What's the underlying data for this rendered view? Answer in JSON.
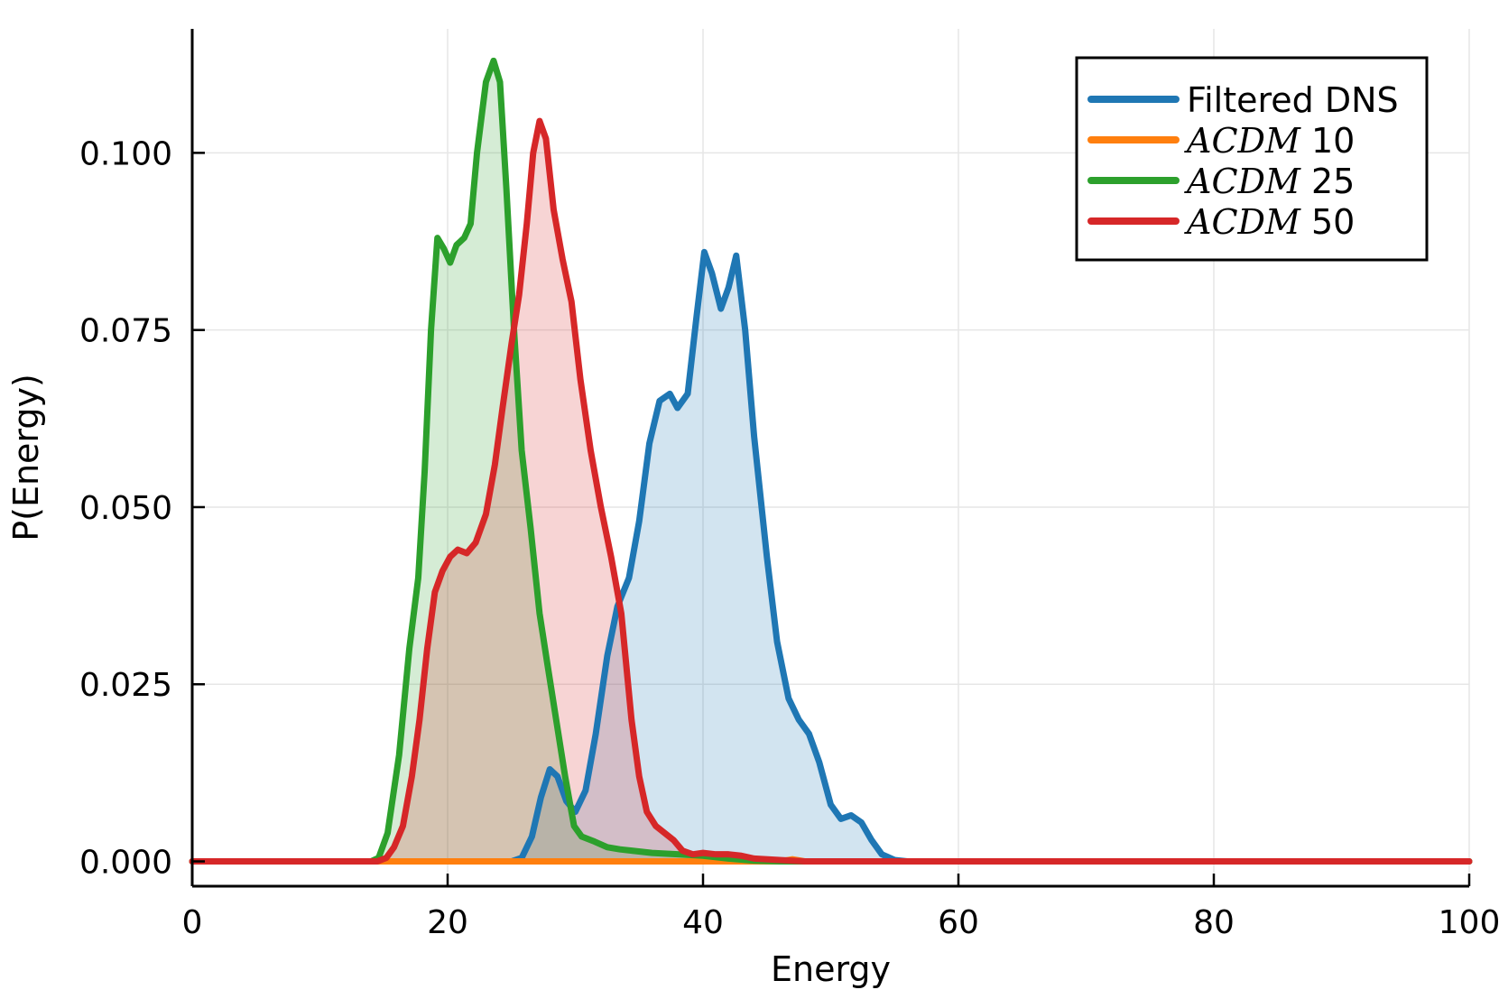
{
  "chart_data": {
    "type": "area",
    "title": "",
    "xlabel": "Energy",
    "ylabel": "P(Energy)",
    "xlim": [
      0,
      100
    ],
    "ylim": [
      -0.0035,
      0.1175
    ],
    "x_ticks": [
      0,
      20,
      40,
      60,
      80,
      100
    ],
    "x_tick_labels": [
      "0",
      "20",
      "40",
      "60",
      "80",
      "100"
    ],
    "y_ticks": [
      0,
      0.025,
      0.05,
      0.075,
      0.1
    ],
    "y_tick_labels": [
      "0.000",
      "0.025",
      "0.050",
      "0.075",
      "0.100"
    ],
    "grid": true,
    "legend_position": "top-right",
    "series": [
      {
        "name": "Filtered DNS",
        "legend_math": "",
        "legend_suffix": "Filtered DNS",
        "color": "#1f77b4",
        "fill": true,
        "points": [
          [
            0,
            0
          ],
          [
            25,
            0
          ],
          [
            25.8,
            0.0005
          ],
          [
            26.6,
            0.0035
          ],
          [
            27.3,
            0.009
          ],
          [
            28,
            0.013
          ],
          [
            28.6,
            0.012
          ],
          [
            29.3,
            0.0085
          ],
          [
            30,
            0.007
          ],
          [
            30.8,
            0.01
          ],
          [
            31.6,
            0.018
          ],
          [
            32.5,
            0.029
          ],
          [
            33.3,
            0.036
          ],
          [
            34.2,
            0.04
          ],
          [
            35,
            0.048
          ],
          [
            35.8,
            0.059
          ],
          [
            36.6,
            0.065
          ],
          [
            37.4,
            0.066
          ],
          [
            38,
            0.064
          ],
          [
            38.8,
            0.066
          ],
          [
            39.5,
            0.077
          ],
          [
            40.1,
            0.086
          ],
          [
            40.7,
            0.083
          ],
          [
            41.4,
            0.078
          ],
          [
            42,
            0.081
          ],
          [
            42.6,
            0.0855
          ],
          [
            43.3,
            0.075
          ],
          [
            44,
            0.06
          ],
          [
            45,
            0.043
          ],
          [
            45.8,
            0.031
          ],
          [
            46.7,
            0.023
          ],
          [
            47.5,
            0.02
          ],
          [
            48.3,
            0.018
          ],
          [
            49.1,
            0.014
          ],
          [
            50,
            0.008
          ],
          [
            50.8,
            0.006
          ],
          [
            51.6,
            0.0065
          ],
          [
            52.4,
            0.0055
          ],
          [
            53.2,
            0.003
          ],
          [
            54,
            0.001
          ],
          [
            55,
            0.0002
          ],
          [
            56,
            0
          ],
          [
            100,
            0
          ]
        ]
      },
      {
        "name": "ACDM 10",
        "legend_math": "ACDM",
        "legend_suffix": "10",
        "color": "#ff7f0e",
        "fill": false,
        "points": [
          [
            0,
            0
          ],
          [
            46,
            0
          ],
          [
            47,
            0.0003
          ],
          [
            48,
            0
          ],
          [
            100,
            0
          ]
        ]
      },
      {
        "name": "ACDM 25",
        "legend_math": "ACDM",
        "legend_suffix": "25",
        "color": "#2ca02c",
        "fill": true,
        "points": [
          [
            0,
            0
          ],
          [
            14,
            0
          ],
          [
            14.6,
            0.0005
          ],
          [
            15.3,
            0.004
          ],
          [
            16.2,
            0.015
          ],
          [
            17,
            0.03
          ],
          [
            17.7,
            0.04
          ],
          [
            18.2,
            0.055
          ],
          [
            18.7,
            0.075
          ],
          [
            19.2,
            0.088
          ],
          [
            19.7,
            0.0865
          ],
          [
            20.2,
            0.0845
          ],
          [
            20.7,
            0.087
          ],
          [
            21.3,
            0.088
          ],
          [
            21.8,
            0.09
          ],
          [
            22.3,
            0.1
          ],
          [
            23,
            0.11
          ],
          [
            23.6,
            0.113
          ],
          [
            24.1,
            0.11
          ],
          [
            24.6,
            0.095
          ],
          [
            25.2,
            0.075
          ],
          [
            25.8,
            0.058
          ],
          [
            26.5,
            0.047
          ],
          [
            27.2,
            0.035
          ],
          [
            27.8,
            0.028
          ],
          [
            28.5,
            0.02
          ],
          [
            29.2,
            0.012
          ],
          [
            29.9,
            0.005
          ],
          [
            30.5,
            0.0035
          ],
          [
            31.5,
            0.0028
          ],
          [
            32.5,
            0.002
          ],
          [
            33.5,
            0.0017
          ],
          [
            34.5,
            0.0015
          ],
          [
            36,
            0.0012
          ],
          [
            38,
            0.001
          ],
          [
            40,
            0.0008
          ],
          [
            42,
            0.0004
          ],
          [
            44,
            0.0001
          ],
          [
            46,
            0
          ],
          [
            100,
            0
          ]
        ]
      },
      {
        "name": "ACDM 50",
        "legend_math": "ACDM",
        "legend_suffix": "50",
        "color": "#d62728",
        "fill": true,
        "points": [
          [
            0,
            0
          ],
          [
            14.5,
            0
          ],
          [
            15.2,
            0.0005
          ],
          [
            15.8,
            0.002
          ],
          [
            16.5,
            0.005
          ],
          [
            17.2,
            0.012
          ],
          [
            17.8,
            0.02
          ],
          [
            18.4,
            0.03
          ],
          [
            19,
            0.038
          ],
          [
            19.6,
            0.041
          ],
          [
            20.2,
            0.043
          ],
          [
            20.8,
            0.044
          ],
          [
            21.5,
            0.0435
          ],
          [
            22.2,
            0.045
          ],
          [
            23,
            0.049
          ],
          [
            23.7,
            0.056
          ],
          [
            24.3,
            0.064
          ],
          [
            25,
            0.073
          ],
          [
            25.6,
            0.08
          ],
          [
            26.2,
            0.09
          ],
          [
            26.7,
            0.1
          ],
          [
            27.2,
            0.1045
          ],
          [
            27.7,
            0.102
          ],
          [
            28.3,
            0.092
          ],
          [
            29,
            0.085
          ],
          [
            29.7,
            0.079
          ],
          [
            30.4,
            0.068
          ],
          [
            31.2,
            0.058
          ],
          [
            32,
            0.05
          ],
          [
            32.8,
            0.043
          ],
          [
            33.6,
            0.035
          ],
          [
            34.4,
            0.02
          ],
          [
            35,
            0.012
          ],
          [
            35.6,
            0.007
          ],
          [
            36.3,
            0.005
          ],
          [
            37,
            0.004
          ],
          [
            37.7,
            0.003
          ],
          [
            38.4,
            0.0015
          ],
          [
            39.2,
            0.001
          ],
          [
            40,
            0.0012
          ],
          [
            41,
            0.001
          ],
          [
            42,
            0.001
          ],
          [
            43,
            0.0008
          ],
          [
            44,
            0.0004
          ],
          [
            46,
            0.0002
          ],
          [
            47,
            0.0001
          ],
          [
            48,
            0
          ],
          [
            100,
            0
          ]
        ]
      }
    ]
  }
}
